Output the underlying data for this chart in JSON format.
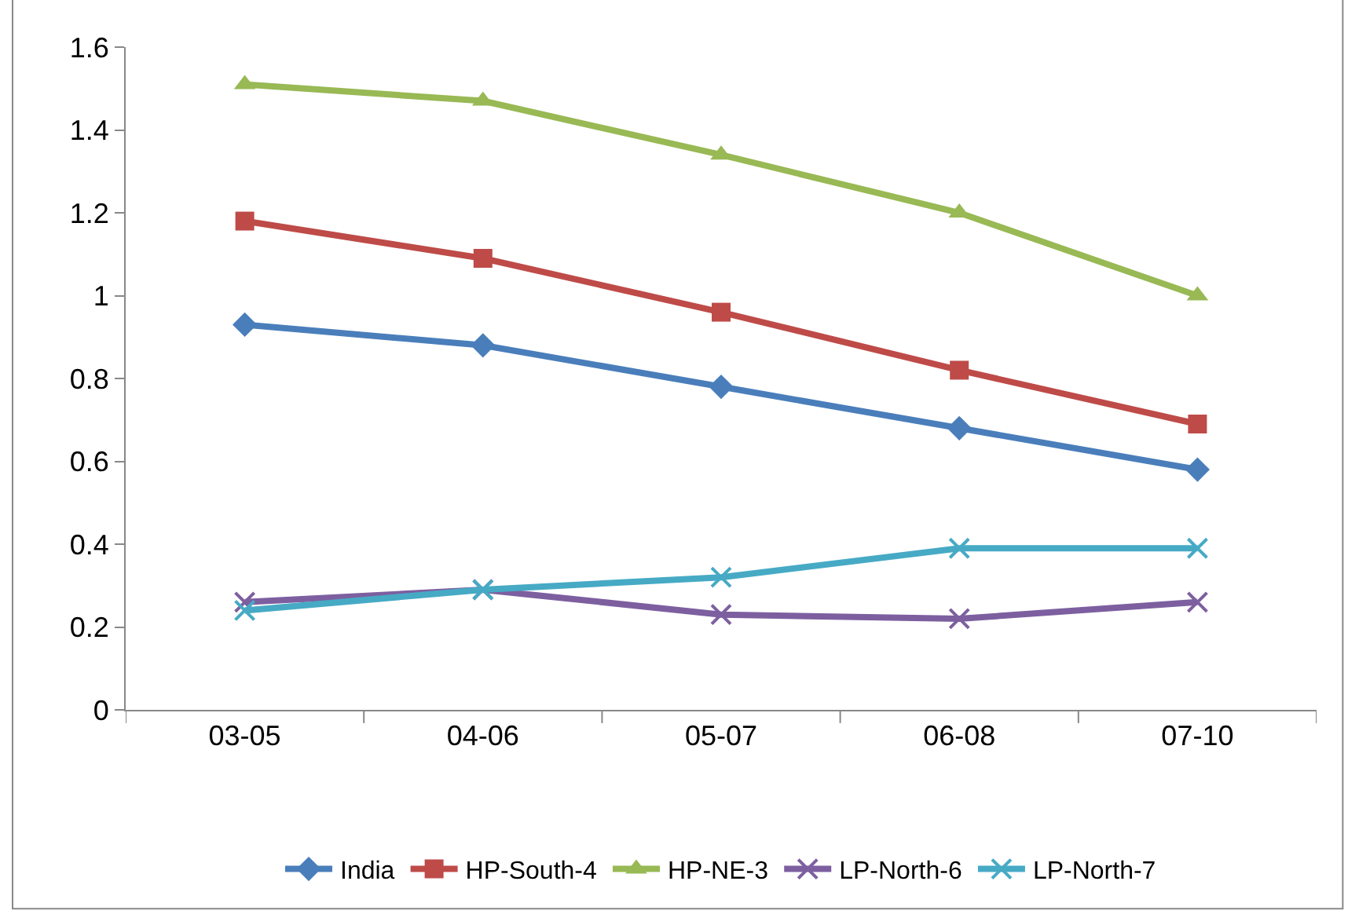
{
  "chart_data": {
    "type": "line",
    "categories": [
      "03-05",
      "04-06",
      "05-07",
      "06-08",
      "07-10"
    ],
    "series": [
      {
        "name": "India",
        "color": "#4a7ebb",
        "marker": "diamond",
        "values": [
          0.93,
          0.88,
          0.78,
          0.68,
          0.58
        ]
      },
      {
        "name": "HP-South-4",
        "color": "#be4b48",
        "marker": "square",
        "values": [
          1.18,
          1.09,
          0.96,
          0.82,
          0.69
        ]
      },
      {
        "name": "HP-NE-3",
        "color": "#98b954",
        "marker": "triangle",
        "values": [
          1.51,
          1.47,
          1.34,
          1.2,
          1.0
        ]
      },
      {
        "name": "LP-North-6",
        "color": "#7d5fa0",
        "marker": "cross",
        "values": [
          0.26,
          0.29,
          0.23,
          0.22,
          0.26
        ]
      },
      {
        "name": "LP-North-7",
        "color": "#46aac5",
        "marker": "cross",
        "values": [
          0.24,
          0.29,
          0.32,
          0.39,
          0.39
        ]
      }
    ],
    "ylim": [
      0,
      1.6
    ],
    "yticks": [
      0,
      0.2,
      0.4,
      0.6,
      0.8,
      1,
      1.2,
      1.4,
      1.6
    ],
    "legend": "bottom",
    "line_style": "solid"
  }
}
